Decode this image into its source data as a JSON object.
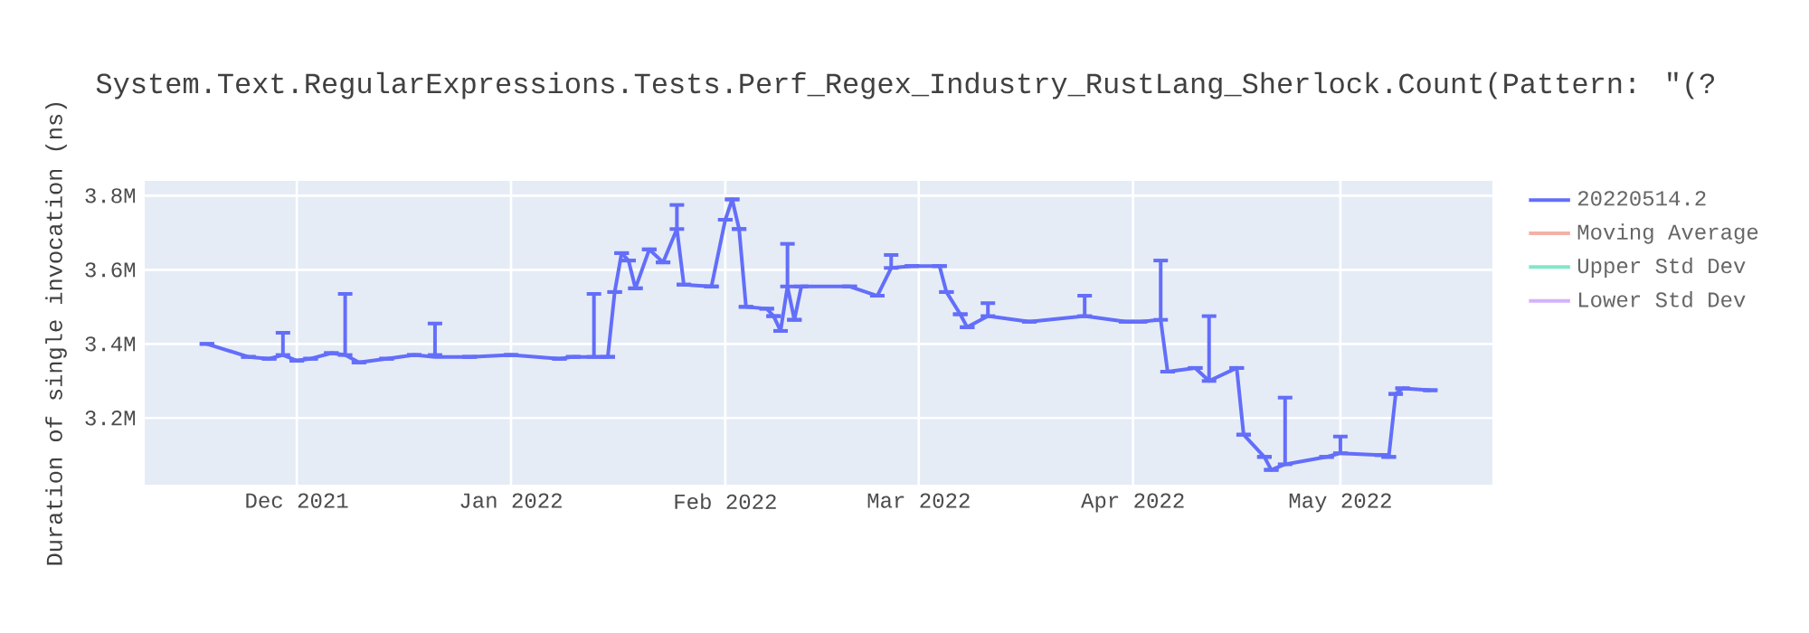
{
  "chart_data": {
    "type": "line",
    "title": "System.Text.RegularExpressions.Tests.Perf_Regex_Industry_RustLang_Sherlock.Count(Pattern: \"(?",
    "ylabel": "Duration of single invocation (ns)",
    "x": [
      "2021-11-18",
      "2021-11-24",
      "2021-11-27",
      "2021-11-29",
      "2021-12-01",
      "2021-12-03",
      "2021-12-06",
      "2021-12-08",
      "2021-12-10",
      "2021-12-14",
      "2021-12-18",
      "2021-12-21",
      "2021-12-26",
      "2022-01-01",
      "2022-01-08",
      "2022-01-10",
      "2022-01-13",
      "2022-01-15",
      "2022-01-16",
      "2022-01-17",
      "2022-01-18",
      "2022-01-19",
      "2022-01-21",
      "2022-01-23",
      "2022-01-25",
      "2022-01-26",
      "2022-01-30",
      "2022-02-01",
      "2022-02-02",
      "2022-02-03",
      "2022-02-04",
      "2022-02-07",
      "2022-02-08",
      "2022-02-09",
      "2022-02-10",
      "2022-02-11",
      "2022-02-12",
      "2022-02-19",
      "2022-02-23",
      "2022-02-25",
      "2022-02-28",
      "2022-03-04",
      "2022-03-05",
      "2022-03-07",
      "2022-03-08",
      "2022-03-11",
      "2022-03-17",
      "2022-03-25",
      "2022-03-31",
      "2022-04-02",
      "2022-04-05",
      "2022-04-06",
      "2022-04-10",
      "2022-04-12",
      "2022-04-16",
      "2022-04-17",
      "2022-04-20",
      "2022-04-21",
      "2022-04-23",
      "2022-04-29",
      "2022-05-01",
      "2022-05-07",
      "2022-05-08",
      "2022-05-09",
      "2022-05-10",
      "2022-05-14"
    ],
    "series": [
      {
        "name": "20220514.2",
        "color": "#636efa",
        "values": [
          3400000,
          3365000,
          3360000,
          3370000,
          3355000,
          3360000,
          3375000,
          3370000,
          3350000,
          3360000,
          3370000,
          3365000,
          3365000,
          3370000,
          3360000,
          3365000,
          3365000,
          3365000,
          3540000,
          3645000,
          3625000,
          3550000,
          3655000,
          3620000,
          3710000,
          3560000,
          3555000,
          3735000,
          3790000,
          3710000,
          3500000,
          3495000,
          3475000,
          3435000,
          3555000,
          3465000,
          3555000,
          3555000,
          3530000,
          3605000,
          3610000,
          3610000,
          3540000,
          3480000,
          3445000,
          3475000,
          3460000,
          3475000,
          3460000,
          3460000,
          3465000,
          3325000,
          3335000,
          3300000,
          3335000,
          3155000,
          3095000,
          3060000,
          3075000,
          3095000,
          3105000,
          3100000,
          3095000,
          3265000,
          3280000,
          3275000
        ],
        "errors": [
          null,
          null,
          null,
          [
            3370000,
            3430000
          ],
          null,
          null,
          null,
          [
            3370000,
            3535000
          ],
          null,
          null,
          null,
          [
            3370000,
            3455000
          ],
          null,
          null,
          null,
          null,
          [
            3365000,
            3535000
          ],
          null,
          null,
          null,
          null,
          null,
          null,
          null,
          [
            3710000,
            3775000
          ],
          null,
          null,
          null,
          null,
          null,
          null,
          null,
          null,
          null,
          [
            3555000,
            3670000
          ],
          null,
          null,
          null,
          null,
          [
            3605000,
            3640000
          ],
          null,
          null,
          null,
          null,
          null,
          [
            3475000,
            3510000
          ],
          null,
          [
            3475000,
            3530000
          ],
          null,
          null,
          [
            3465000,
            3625000
          ],
          null,
          null,
          [
            3300000,
            3475000
          ],
          null,
          null,
          null,
          null,
          [
            3075000,
            3255000
          ],
          null,
          [
            3105000,
            3150000
          ],
          null,
          null,
          null,
          null,
          null
        ]
      },
      {
        "name": "Moving Average",
        "color": "#f4b1a5",
        "values": [
          null,
          null,
          null,
          null,
          null,
          null,
          null,
          null,
          null,
          null,
          null,
          null,
          null,
          null,
          null,
          null,
          null,
          null,
          null,
          null,
          null,
          null,
          null,
          null,
          null,
          null,
          null,
          null,
          null,
          null,
          null,
          null,
          null,
          null,
          null,
          null,
          null,
          null,
          null,
          null,
          null,
          null,
          null,
          null,
          null,
          null,
          null,
          null,
          null,
          null,
          null,
          null,
          null,
          null,
          null,
          null,
          null,
          null,
          null,
          null,
          null,
          null,
          null,
          null,
          null,
          null
        ]
      },
      {
        "name": "Upper Std Dev",
        "color": "#80e6ca",
        "values": [
          null,
          null,
          null,
          null,
          null,
          null,
          null,
          null,
          null,
          null,
          null,
          null,
          null,
          null,
          null,
          null,
          null,
          null,
          null,
          null,
          null,
          null,
          null,
          null,
          null,
          null,
          null,
          null,
          null,
          null,
          null,
          null,
          null,
          null,
          null,
          null,
          null,
          null,
          null,
          null,
          null,
          null,
          null,
          null,
          null,
          null,
          null,
          null,
          null,
          null,
          null,
          null,
          null,
          null,
          null,
          null,
          null,
          null,
          null,
          null,
          null,
          null,
          null,
          null,
          null,
          null
        ]
      },
      {
        "name": "Lower Std Dev",
        "color": "#d5b1fc",
        "values": [
          null,
          null,
          null,
          null,
          null,
          null,
          null,
          null,
          null,
          null,
          null,
          null,
          null,
          null,
          null,
          null,
          null,
          null,
          null,
          null,
          null,
          null,
          null,
          null,
          null,
          null,
          null,
          null,
          null,
          null,
          null,
          null,
          null,
          null,
          null,
          null,
          null,
          null,
          null,
          null,
          null,
          null,
          null,
          null,
          null,
          null,
          null,
          null,
          null,
          null,
          null,
          null,
          null,
          null,
          null,
          null,
          null,
          null,
          null,
          null,
          null,
          null,
          null,
          null,
          null,
          null
        ]
      }
    ],
    "xlim": [
      "2021-11-09",
      "2022-05-23"
    ],
    "xticks": [
      {
        "value": "2021-12-01",
        "label": "Dec 2021"
      },
      {
        "value": "2022-01-01",
        "label": "Jan 2022"
      },
      {
        "value": "2022-02-01",
        "label": "Feb 2022"
      },
      {
        "value": "2022-03-01",
        "label": "Mar 2022"
      },
      {
        "value": "2022-04-01",
        "label": "Apr 2022"
      },
      {
        "value": "2022-05-01",
        "label": "May 2022"
      }
    ],
    "ylim": [
      3020000,
      3840000
    ],
    "yticks": [
      {
        "value": 3200000,
        "label": "3.2M"
      },
      {
        "value": 3400000,
        "label": "3.4M"
      },
      {
        "value": 3600000,
        "label": "3.6M"
      },
      {
        "value": 3800000,
        "label": "3.8M"
      }
    ],
    "grid": true,
    "legend": "top right"
  }
}
